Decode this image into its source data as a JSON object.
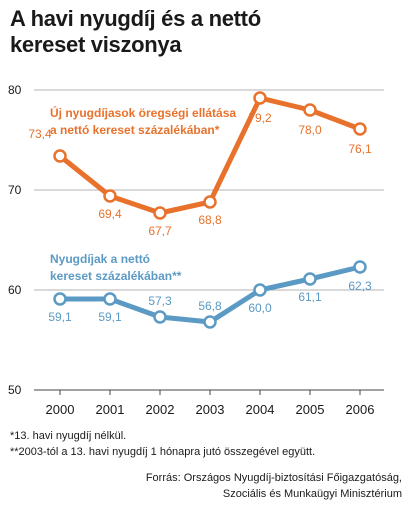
{
  "title": [
    "A havi nyugdíj és a nettó",
    "kereset viszonya"
  ],
  "chart_data": {
    "type": "line",
    "x": [
      2000,
      2001,
      2002,
      2003,
      2004,
      2005,
      2006
    ],
    "x_tick_labels": [
      "2000",
      "2001",
      "2002",
      "2003",
      "2004",
      "2005",
      "2006"
    ],
    "ylim": [
      50,
      80
    ],
    "y_ticks": [
      50,
      60,
      70,
      80
    ],
    "y_tick_labels": [
      "50",
      "60",
      "70",
      "80"
    ],
    "grid": true,
    "series": [
      {
        "name_lines": [
          "Új nyugdíjasok öregségi ellátása",
          "a nettó kereset százalékában*"
        ],
        "values": [
          73.4,
          69.4,
          67.7,
          68.8,
          79.2,
          78.0,
          76.1
        ],
        "value_labels": [
          "73,4",
          "69,4",
          "67,7",
          "68,8",
          "79,2",
          "78,0",
          "76,1"
        ],
        "color": "#e8722c"
      },
      {
        "name_lines": [
          "Nyugdíjak a nettó",
          "kereset százalékában**"
        ],
        "values": [
          59.1,
          59.1,
          57.3,
          56.8,
          60.0,
          61.1,
          62.3
        ],
        "value_labels": [
          "59,1",
          "59,1",
          "57,3",
          "56,8",
          "60,0",
          "61,1",
          "62,3"
        ],
        "color": "#5b9ac4"
      }
    ]
  },
  "footnotes": [
    "*13. havi nyugdíj nélkül.",
    "**2003-tól a 13. havi nyugdíj 1 hónapra jutó összegével együtt."
  ],
  "source": [
    "Forrás: Országos Nyugdíj-biztosítási Főigazgatóság,",
    "Szociális és Munkaügyi Minisztérium"
  ]
}
